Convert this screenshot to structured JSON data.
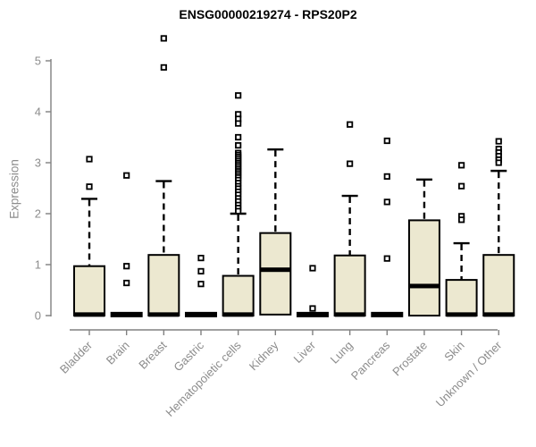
{
  "style": {
    "box_fill": "#ece8d0",
    "box_stroke": "#000000",
    "median_color": "#000000",
    "axis_color": "#808080",
    "text_color": "#8c8c8c",
    "title_color": "#000000",
    "background": "#ffffff"
  },
  "chart_data": {
    "type": "boxplot",
    "title": "ENSG00000219274 - RPS20P2",
    "xlabel": "",
    "ylabel": "Expression",
    "ylim": [
      0,
      5
    ],
    "yticks": [
      0,
      1,
      2,
      3,
      4,
      5
    ],
    "grid": false,
    "legend": false,
    "categories": [
      "Bladder",
      "Brain",
      "Breast",
      "Gastric",
      "Hematopoietic cells",
      "Kidney",
      "Liver",
      "Lung",
      "Pancreas",
      "Prostate",
      "Skin",
      "Unknown / Other"
    ],
    "boxes": [
      {
        "label": "Bladder",
        "whisker_low": 0,
        "q1": 0,
        "median": 0.02,
        "q3": 0.97,
        "whisker_high": 2.29,
        "outliers": [
          3.07,
          2.53
        ]
      },
      {
        "label": "Brain",
        "whisker_low": 0,
        "q1": 0,
        "median": 0.02,
        "q3": 0.04,
        "whisker_high": 0.04,
        "outliers": [
          2.75,
          0.97,
          0.64
        ]
      },
      {
        "label": "Breast",
        "whisker_low": 0,
        "q1": 0,
        "median": 0.02,
        "q3": 1.19,
        "whisker_high": 2.64,
        "outliers": [
          5.44,
          4.87
        ]
      },
      {
        "label": "Gastric",
        "whisker_low": 0,
        "q1": 0,
        "median": 0.02,
        "q3": 0.04,
        "whisker_high": 0.04,
        "outliers": [
          1.13,
          0.87,
          0.62
        ]
      },
      {
        "label": "Hematopoietic cells",
        "whisker_low": 0,
        "q1": 0,
        "median": 0.02,
        "q3": 0.78,
        "whisker_high": 2.0,
        "outliers": [
          4.32,
          3.95,
          3.86,
          3.77,
          3.5,
          3.34,
          3.19,
          3.15,
          3.11,
          3.07,
          3.03,
          2.99,
          2.95,
          2.91,
          2.87,
          2.83,
          2.79,
          2.75,
          2.71,
          2.66,
          2.6,
          2.54,
          2.49,
          2.43,
          2.37,
          2.3,
          2.24,
          2.17,
          2.11,
          2.05
        ]
      },
      {
        "label": "Kidney",
        "whisker_low": 0.02,
        "q1": 0.02,
        "median": 0.9,
        "q3": 1.62,
        "whisker_high": 3.26,
        "outliers": []
      },
      {
        "label": "Liver",
        "whisker_low": 0,
        "q1": 0,
        "median": 0.02,
        "q3": 0.04,
        "whisker_high": 0.04,
        "outliers": [
          0.93,
          0.14
        ]
      },
      {
        "label": "Lung",
        "whisker_low": 0,
        "q1": 0,
        "median": 0.02,
        "q3": 1.18,
        "whisker_high": 2.35,
        "outliers": [
          3.75,
          2.98
        ]
      },
      {
        "label": "Pancreas",
        "whisker_low": 0,
        "q1": 0,
        "median": 0.02,
        "q3": 0.04,
        "whisker_high": 0.04,
        "outliers": [
          3.43,
          2.73,
          2.23,
          1.12
        ]
      },
      {
        "label": "Prostate",
        "whisker_low": 0,
        "q1": 0,
        "median": 0.58,
        "q3": 1.87,
        "whisker_high": 2.67,
        "outliers": []
      },
      {
        "label": "Skin",
        "whisker_low": 0,
        "q1": 0,
        "median": 0.02,
        "q3": 0.7,
        "whisker_high": 1.42,
        "outliers": [
          2.95,
          2.54,
          1.95,
          1.88
        ]
      },
      {
        "label": "Unknown / Other",
        "whisker_low": 0,
        "q1": 0,
        "median": 0.02,
        "q3": 1.19,
        "whisker_high": 2.84,
        "outliers": [
          3.42,
          3.27,
          3.2,
          3.13,
          3.06,
          3.0
        ]
      }
    ]
  }
}
